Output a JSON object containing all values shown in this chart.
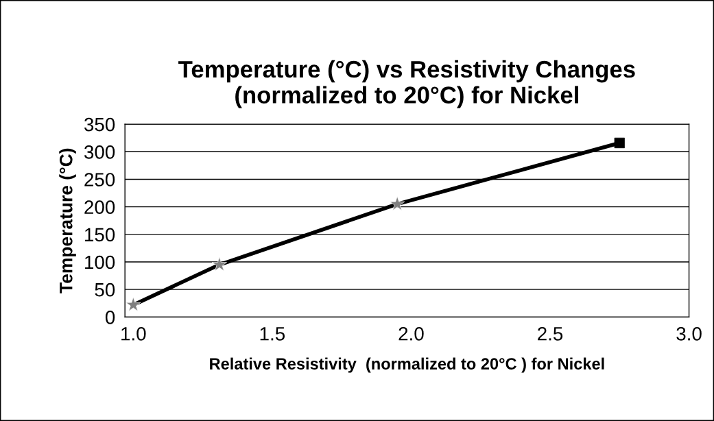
{
  "chart_data": {
    "type": "line",
    "title": "Temperature (°C) vs Resistivity Changes\n(normalized to 20°C) for Nickel",
    "xlabel": "Relative Resistivity  (normalized to 20°C ) for Nickel",
    "ylabel": "Temperature (°C)",
    "series": [
      {
        "color": "#000000",
        "x": [
          1.0,
          1.31,
          1.95,
          2.75
        ],
        "values": [
          22,
          95,
          205,
          316
        ],
        "marker": "none"
      },
      {
        "type": "scatter",
        "color": "#808080",
        "x": [
          1.0,
          1.31,
          1.95
        ],
        "values": [
          22,
          95,
          205
        ],
        "marker": "star"
      },
      {
        "type": "scatter",
        "color": "#000000",
        "x": [
          2.75
        ],
        "values": [
          316
        ],
        "marker": "square"
      }
    ],
    "xlim": [
      0.97,
      3.0
    ],
    "xticks": [
      {
        "value": 1.0,
        "label": "1.0"
      },
      {
        "value": 1.5,
        "label": "1.5"
      },
      {
        "value": 2.0,
        "label": "2.0"
      },
      {
        "value": 2.5,
        "label": "2.5"
      },
      {
        "value": 3.0,
        "label": "3.0"
      }
    ],
    "ylim": [
      0,
      350
    ],
    "yticks": [
      0,
      50,
      100,
      150,
      200,
      250,
      300,
      350
    ],
    "grid": "y",
    "legend": false
  }
}
